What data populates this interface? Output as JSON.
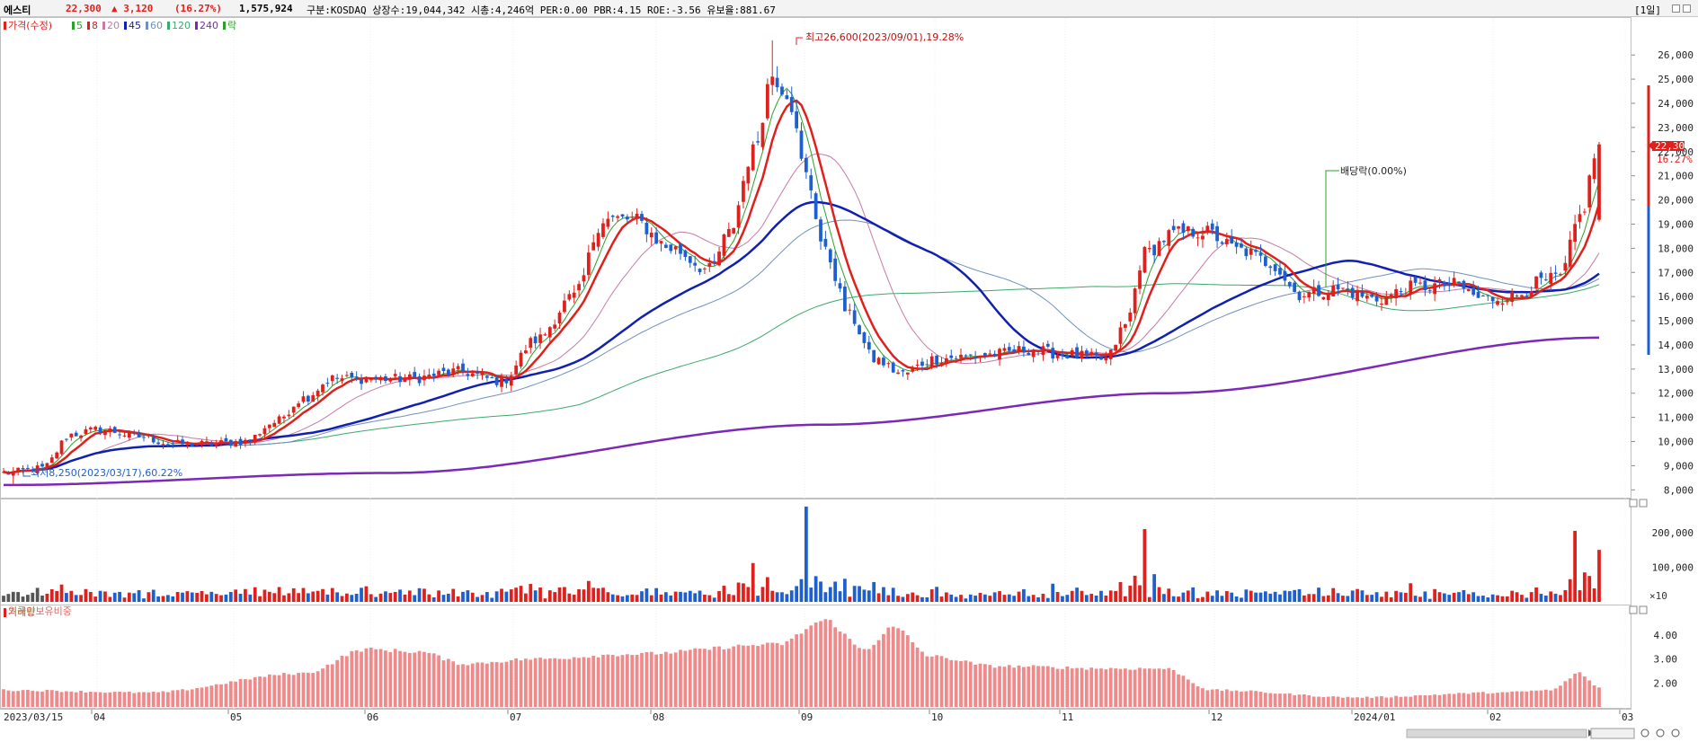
{
  "header": {
    "stock_name": "에스티",
    "price": "22,300",
    "change": "▲ 3,120",
    "change_pct": "(16.27%)",
    "volume": "1,575,924",
    "info": "구분:KOSDAQ 상장수:19,044,342 시총:4,246억 PER:0.00 PBR:4.15 ROE:-3.56 유보율:881.67",
    "period": "[1일]"
  },
  "colors": {
    "up": "#e0201c",
    "down": "#1e5fcf",
    "ma5": "#2ca02c",
    "ma8": "#e0201c",
    "ma20": "#c87aa8",
    "ma45": "#1020b0",
    "ma60": "#7090c0",
    "ma120": "#3aaa6a",
    "ma240": "#7b2ab8",
    "foreign": "#f08a8a"
  },
  "price_panel": {
    "legend": [
      {
        "label": "가격(수정)",
        "color": "#e0201c"
      },
      {
        "label": "5",
        "color": "#2ca02c"
      },
      {
        "label": "8",
        "color": "#e0201c"
      },
      {
        "label": "20",
        "color": "#c87aa8"
      },
      {
        "label": "45",
        "color": "#1020b0"
      },
      {
        "label": "60",
        "color": "#7090c0"
      },
      {
        "label": "120",
        "color": "#3aaa6a"
      },
      {
        "label": "240",
        "color": "#7b2ab8"
      },
      {
        "label": "락",
        "color": "#2ca02c"
      }
    ],
    "y_ticks": [
      "8,000",
      "9,000",
      "10,000",
      "11,000",
      "12,000",
      "13,000",
      "14,000",
      "15,000",
      "16,000",
      "17,000",
      "18,000",
      "19,000",
      "20,000",
      "21,000",
      "22,000",
      "23,000",
      "24,000",
      "25,000",
      "26,000"
    ],
    "ylim": [
      7900,
      26900
    ],
    "high_annotation": "최고26,600(2023/09/01),19.28%",
    "low_annotation": "최저8,250(2023/03/17),60.22%",
    "dividend_annotation": "배당락(0.00%)",
    "current_price_label": "22,300",
    "current_pct_label": "16.27%"
  },
  "volume_panel": {
    "title": "거래량",
    "y_ticks": [
      "100,000",
      "200,000"
    ],
    "unit": "×10",
    "ylim": [
      0,
      280000
    ]
  },
  "foreign_panel": {
    "title": "외국인보유비중",
    "y_ticks": [
      "2.00",
      "3.00",
      "4.00"
    ],
    "ylim": [
      1.0,
      5.0
    ]
  },
  "x_axis": {
    "labels": [
      "2023/03/15",
      "04",
      "05",
      "06",
      "07",
      "08",
      "09",
      "10",
      "11",
      "12",
      "2024/01",
      "02",
      "03"
    ]
  },
  "chart_data": {
    "type": "candlestick",
    "title": "에스티",
    "x_range": [
      "2023/03/15",
      "2024/02/27"
    ],
    "anchors_close": [
      [
        0,
        8700
      ],
      [
        8,
        8900
      ],
      [
        14,
        10300
      ],
      [
        20,
        10500
      ],
      [
        28,
        10200
      ],
      [
        35,
        9900
      ],
      [
        42,
        9900
      ],
      [
        50,
        10000
      ],
      [
        56,
        10800
      ],
      [
        62,
        11800
      ],
      [
        68,
        12600
      ],
      [
        75,
        12600
      ],
      [
        84,
        12600
      ],
      [
        94,
        12900
      ],
      [
        103,
        12500
      ],
      [
        110,
        14200
      ],
      [
        118,
        16000
      ],
      [
        124,
        19200
      ],
      [
        130,
        19200
      ],
      [
        138,
        18000
      ],
      [
        146,
        17100
      ],
      [
        150,
        18600
      ],
      [
        155,
        22000
      ],
      [
        159,
        25200
      ],
      [
        162,
        24500
      ],
      [
        166,
        21000
      ],
      [
        170,
        17800
      ],
      [
        175,
        15200
      ],
      [
        180,
        13400
      ],
      [
        186,
        12800
      ],
      [
        192,
        13400
      ],
      [
        198,
        13500
      ],
      [
        204,
        13600
      ],
      [
        212,
        13800
      ],
      [
        220,
        13600
      ],
      [
        228,
        13400
      ],
      [
        232,
        14800
      ],
      [
        236,
        17800
      ],
      [
        242,
        18600
      ],
      [
        248,
        18700
      ],
      [
        256,
        17900
      ],
      [
        262,
        17400
      ],
      [
        268,
        16100
      ],
      [
        276,
        16300
      ],
      [
        284,
        15900
      ],
      [
        292,
        16400
      ],
      [
        300,
        16500
      ],
      [
        306,
        15900
      ],
      [
        312,
        16000
      ],
      [
        318,
        16600
      ],
      [
        322,
        16800
      ],
      [
        326,
        19300
      ],
      [
        330,
        22300
      ]
    ],
    "ma240_approx": [
      [
        0,
        8200
      ],
      [
        80,
        8700
      ],
      [
        170,
        10700
      ],
      [
        240,
        12000
      ],
      [
        330,
        14300
      ]
    ],
    "volume_spikes": [
      [
        12,
        50000
      ],
      [
        75,
        45000
      ],
      [
        155,
        112000
      ],
      [
        166,
        275000
      ],
      [
        236,
        210000
      ],
      [
        238,
        80000
      ],
      [
        325,
        205000
      ],
      [
        327,
        85000
      ],
      [
        330,
        150000
      ]
    ],
    "foreign_ratio_anchors": [
      [
        0,
        1.7
      ],
      [
        30,
        1.6
      ],
      [
        62,
        2.4
      ],
      [
        75,
        3.4
      ],
      [
        86,
        3.3
      ],
      [
        95,
        2.8
      ],
      [
        110,
        3.0
      ],
      [
        130,
        3.2
      ],
      [
        160,
        3.6
      ],
      [
        170,
        4.6
      ],
      [
        178,
        3.4
      ],
      [
        184,
        4.3
      ],
      [
        192,
        3.1
      ],
      [
        205,
        2.7
      ],
      [
        230,
        2.6
      ],
      [
        240,
        2.6
      ],
      [
        250,
        1.7
      ],
      [
        280,
        1.4
      ],
      [
        310,
        1.6
      ],
      [
        320,
        1.7
      ],
      [
        326,
        2.4
      ],
      [
        330,
        1.8
      ]
    ],
    "high": {
      "value": 26600,
      "date": "2023/09/01"
    },
    "low": {
      "value": 8250,
      "date": "2023/03/17"
    }
  }
}
